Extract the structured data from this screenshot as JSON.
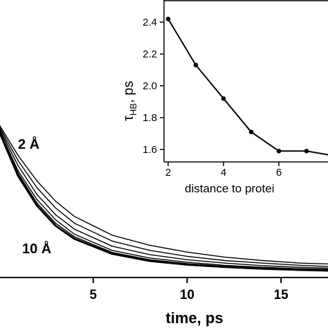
{
  "chart_data": [
    {
      "type": "line",
      "xlabel": "time, ps",
      "ylabel": "",
      "xlim": [
        0,
        17.5
      ],
      "xticks": [
        5,
        10,
        15
      ],
      "annotations": [
        "2 Å",
        "10 Å"
      ],
      "series": [
        {
          "x": [
            0,
            1,
            2,
            3,
            4,
            6,
            8,
            10,
            12,
            14,
            16,
            17.5
          ],
          "y": [
            0.9,
            0.72,
            0.57,
            0.45,
            0.36,
            0.25,
            0.19,
            0.15,
            0.12,
            0.1,
            0.085,
            0.08
          ]
        },
        {
          "x": [
            0,
            1,
            2,
            3,
            4,
            6,
            8,
            10,
            12,
            14,
            16,
            17.5
          ],
          "y": [
            0.89,
            0.69,
            0.53,
            0.41,
            0.32,
            0.215,
            0.16,
            0.125,
            0.1,
            0.085,
            0.072,
            0.065
          ]
        },
        {
          "x": [
            0,
            1,
            2,
            3,
            4,
            6,
            8,
            10,
            12,
            14,
            16,
            17.5
          ],
          "y": [
            0.88,
            0.66,
            0.49,
            0.37,
            0.285,
            0.185,
            0.135,
            0.105,
            0.085,
            0.07,
            0.06,
            0.055
          ]
        },
        {
          "x": [
            0,
            1,
            2,
            3,
            4,
            6,
            8,
            10,
            12,
            14,
            16,
            17.5
          ],
          "y": [
            0.87,
            0.63,
            0.46,
            0.34,
            0.255,
            0.16,
            0.115,
            0.09,
            0.072,
            0.06,
            0.052,
            0.048
          ]
        },
        {
          "x": [
            0,
            1,
            2,
            3,
            4,
            6,
            8,
            10,
            12,
            14,
            16,
            17.5
          ],
          "y": [
            0.865,
            0.615,
            0.44,
            0.32,
            0.24,
            0.148,
            0.105,
            0.082,
            0.066,
            0.055,
            0.048,
            0.044
          ]
        },
        {
          "x": [
            0,
            1,
            2,
            3,
            4,
            6,
            8,
            10,
            12,
            14,
            16,
            17.5
          ],
          "y": [
            0.86,
            0.6,
            0.425,
            0.305,
            0.228,
            0.14,
            0.098,
            0.076,
            0.062,
            0.052,
            0.045,
            0.041
          ]
        }
      ]
    },
    {
      "type": "line",
      "xlabel": "distance to protei",
      "ylabel": "τHB, ps",
      "ylabel_main": "τ",
      "ylabel_sub": "HB",
      "ylabel_tail": ", ps",
      "xlim": [
        1.8,
        8
      ],
      "ylim": [
        1.55,
        2.45
      ],
      "xticks": [
        2,
        4,
        6
      ],
      "yticks": [
        "1.6",
        "1.8",
        "2.0",
        "2.2",
        "2.4"
      ],
      "x": [
        2,
        3,
        4,
        5,
        6,
        7,
        8
      ],
      "y": [
        2.42,
        2.13,
        1.92,
        1.71,
        1.59,
        1.59,
        1.56
      ]
    }
  ]
}
